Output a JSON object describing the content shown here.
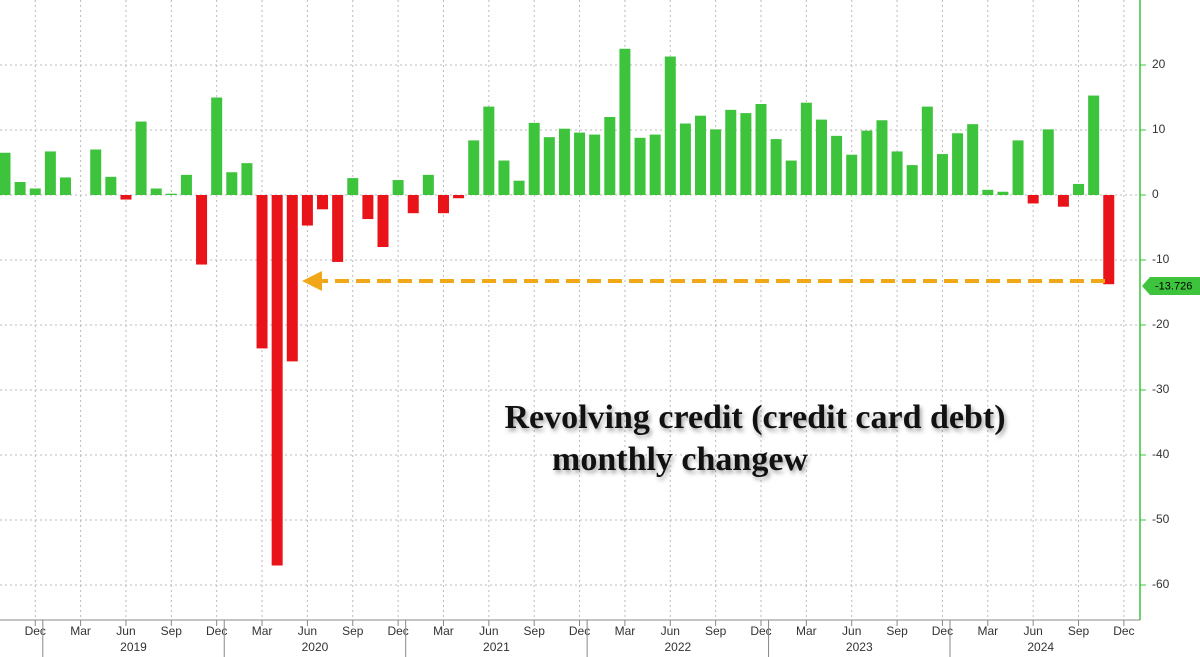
{
  "chart_data": {
    "type": "bar",
    "annotation": [
      "Revolving credit (credit card debt)",
      "monthly changew"
    ],
    "categories": [
      null,
      null,
      "Dec",
      null,
      null,
      "Mar",
      null,
      null,
      "Jun",
      null,
      null,
      "Sep",
      null,
      null,
      "Dec",
      null,
      null,
      "Mar",
      null,
      null,
      "Jun",
      null,
      null,
      "Sep",
      null,
      null,
      "Dec",
      null,
      null,
      "Mar",
      null,
      null,
      "Jun",
      null,
      null,
      "Sep",
      null,
      null,
      "Dec",
      null,
      null,
      "Mar",
      null,
      null,
      "Jun",
      null,
      null,
      "Sep",
      null,
      null,
      "Dec",
      null,
      null,
      "Mar",
      null,
      null,
      "Jun",
      null,
      null,
      "Sep",
      null,
      null,
      "Dec",
      null,
      null,
      "Mar",
      null,
      null,
      "Jun",
      null,
      null,
      "Sep",
      null,
      null,
      "Dec"
    ],
    "years": [
      "2019",
      "2020",
      "2021",
      "2022",
      "2023",
      "2024"
    ],
    "values": [
      6.5,
      2,
      1,
      6.7,
      2.7,
      0,
      7,
      2.8,
      -0.7,
      11.3,
      1,
      0.2,
      3.1,
      -10.7,
      15,
      3.5,
      4.9,
      -23.6,
      -57,
      -25.6,
      -4.7,
      -2.2,
      -10.3,
      2.6,
      -3.7,
      -8,
      2.3,
      -2.8,
      3.1,
      -2.8,
      -0.5,
      8.4,
      13.6,
      5.3,
      2.2,
      11.1,
      8.9,
      10.2,
      9.6,
      9.3,
      12,
      22.5,
      8.8,
      9.3,
      21.3,
      11,
      12.2,
      10.1,
      13.1,
      12.6,
      14,
      8.6,
      5.3,
      14.2,
      11.6,
      9.1,
      6.2,
      9.9,
      11.5,
      6.7,
      4.6,
      13.6,
      6.3,
      9.5,
      10.9,
      0.8,
      0.5,
      8.4,
      -1.3,
      10.1,
      -1.8,
      1.7,
      15.3,
      -13.726,
      null
    ],
    "positive_color": "#3ec43c",
    "negative_color": "#e8141a",
    "ylim": [
      -65,
      30
    ],
    "yticks": [
      20,
      10,
      0,
      -10,
      -20,
      -30,
      -40,
      -50,
      -60
    ],
    "grid": true
  }
}
